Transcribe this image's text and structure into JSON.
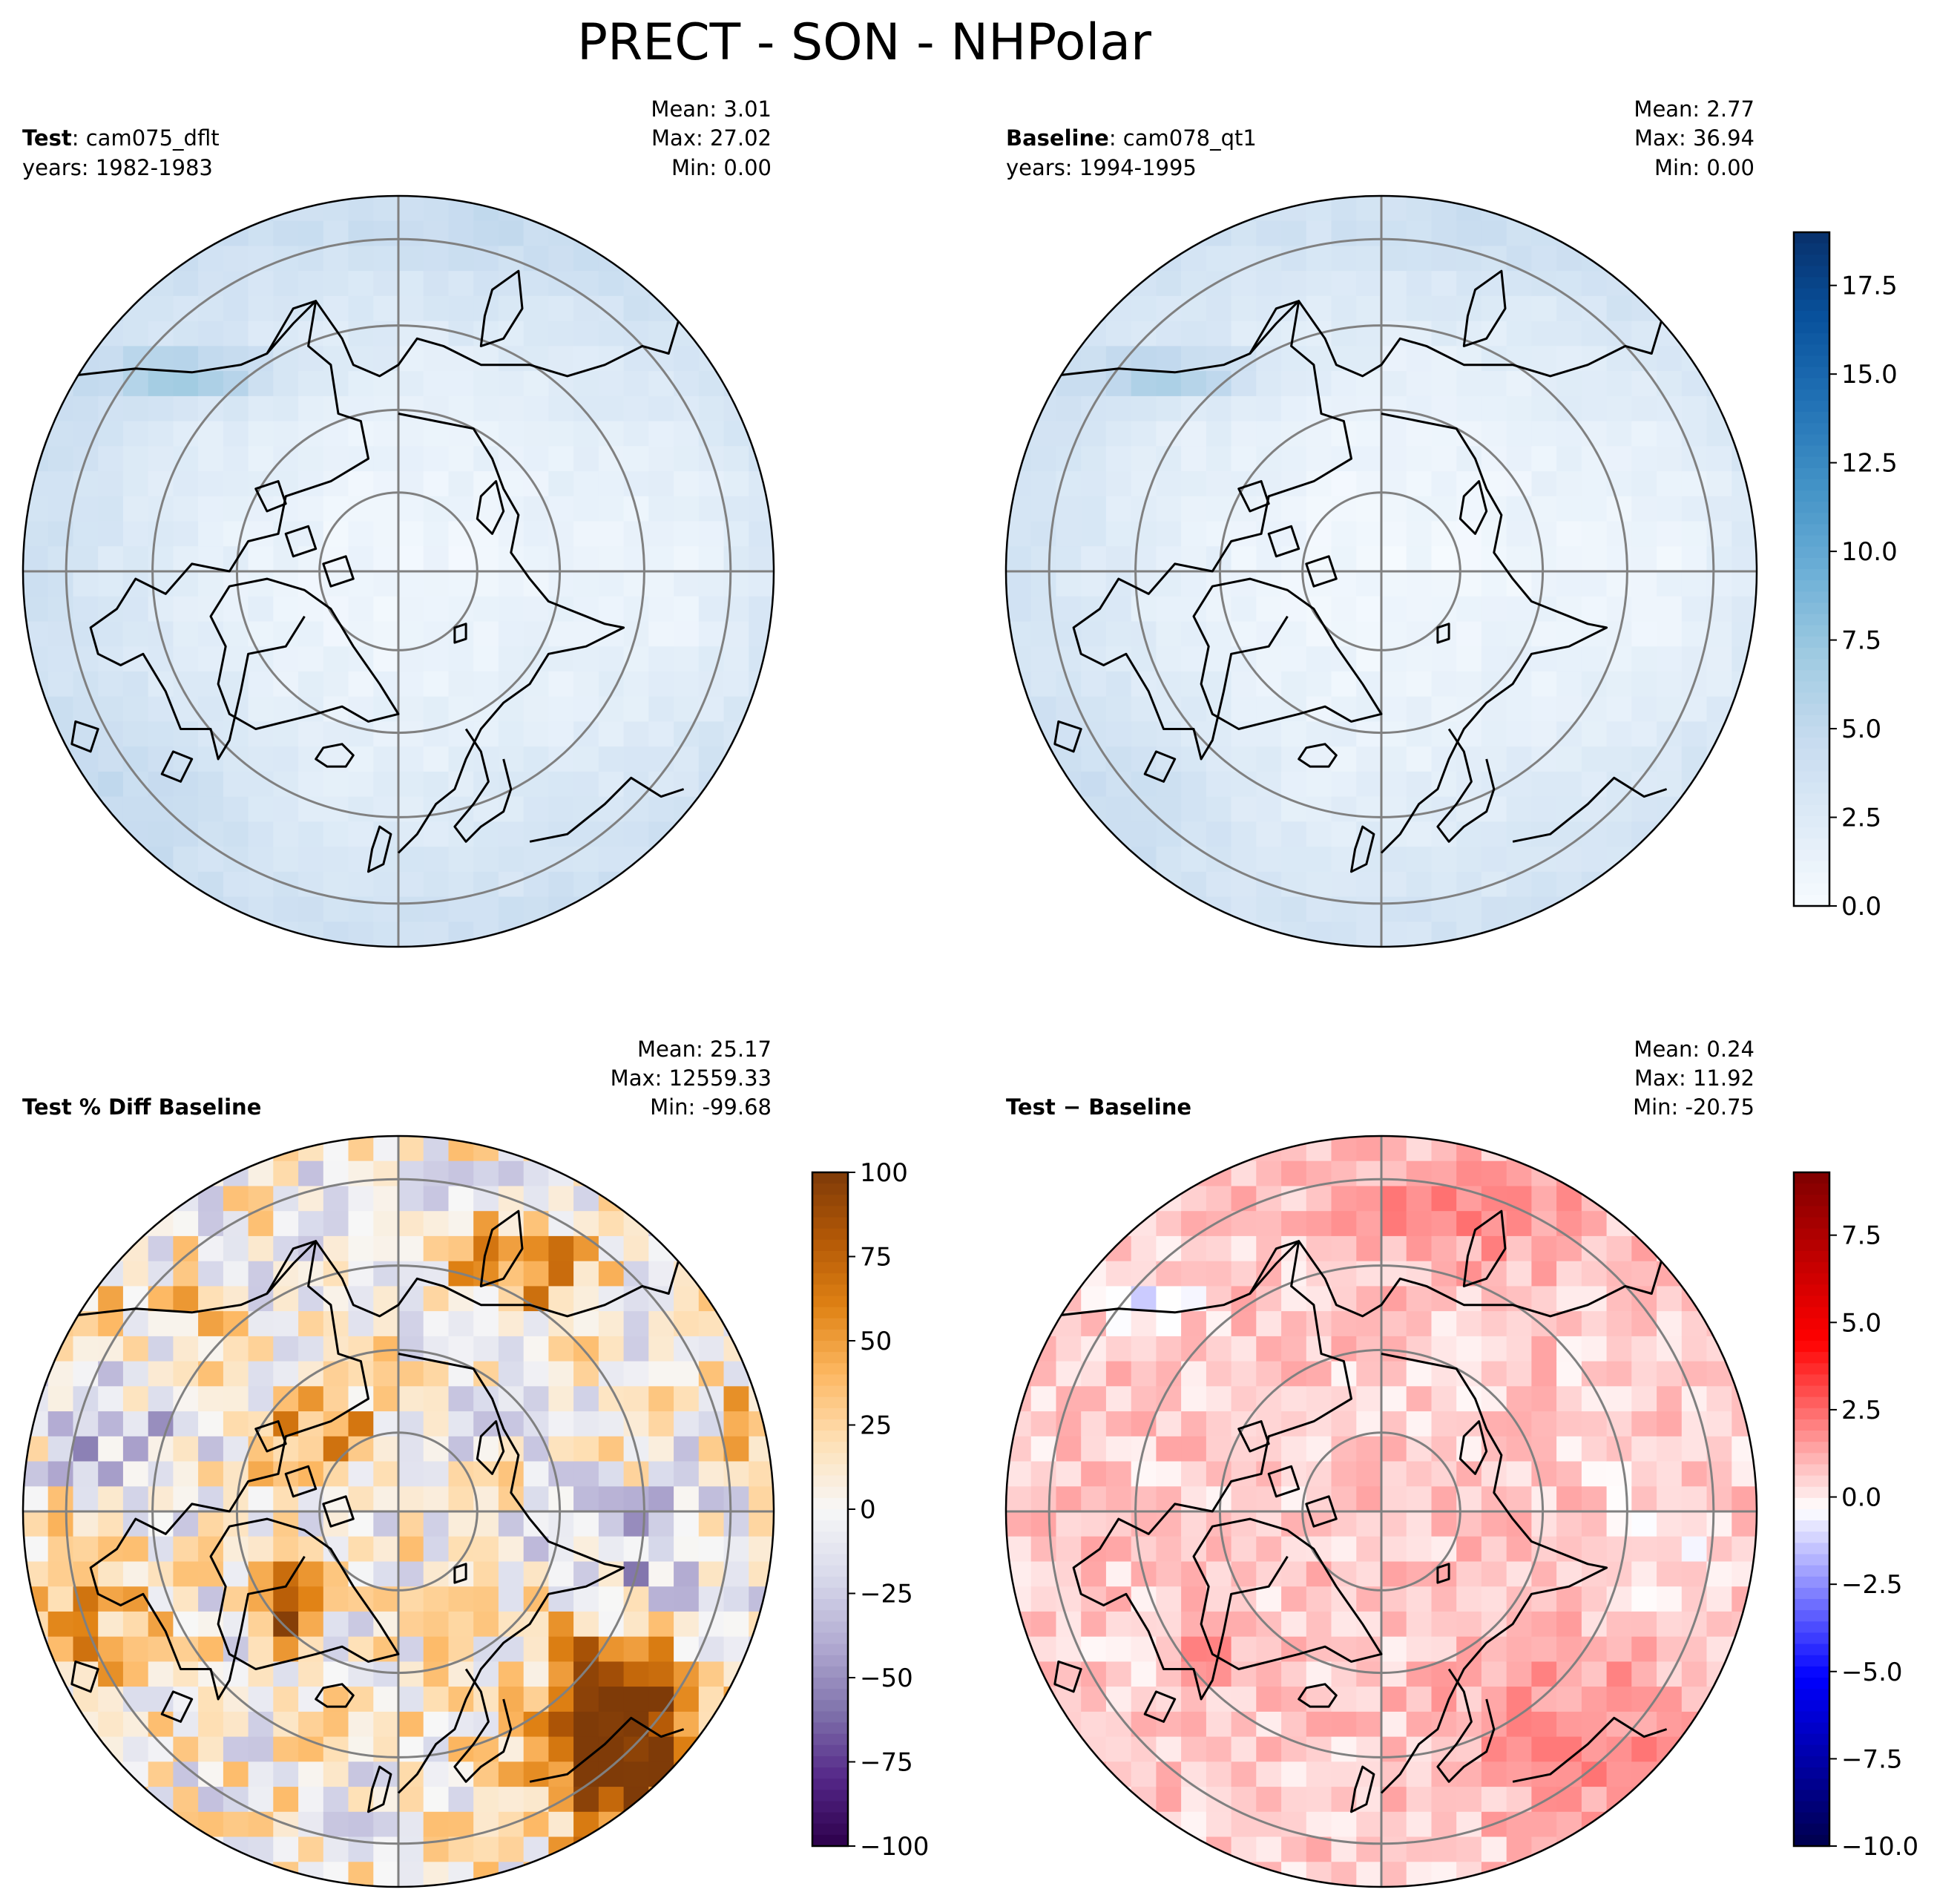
{
  "figure": {
    "title": "PRECT - SON - NHPolar"
  },
  "chart_data": [
    {
      "type": "heatmap",
      "name": "test",
      "title_bold": "Test",
      "title_rest": ": cam075_dflt",
      "subtitle": "years: 1982-1983",
      "stats": [
        "Mean:  3.01",
        "Max: 27.02",
        "Min:  0.00"
      ],
      "projection": "north-polar-stereographic",
      "colormap": "Blues",
      "vmin": 0,
      "vmax": 19
    },
    {
      "type": "heatmap",
      "name": "baseline",
      "title_bold": "Baseline",
      "title_rest": ": cam078_qt1",
      "subtitle": "years: 1994-1995",
      "stats": [
        "Mean:  2.77",
        "Max: 36.94",
        "Min:  0.00"
      ],
      "projection": "north-polar-stereographic",
      "colormap": "Blues",
      "vmin": 0,
      "vmax": 19,
      "colorbar": {
        "ticks": [
          "0.0",
          "2.5",
          "5.0",
          "7.5",
          "10.0",
          "12.5",
          "15.0",
          "17.5"
        ],
        "tick_values": [
          0,
          2.5,
          5,
          7.5,
          10,
          12.5,
          15,
          17.5
        ]
      }
    },
    {
      "type": "heatmap",
      "name": "pctdiff",
      "title_bold": "Test % Diff Baseline",
      "title_rest": "",
      "subtitle": "",
      "stats": [
        "Mean: 25.17",
        "Max: 12559.33",
        "Min: -99.68"
      ],
      "projection": "north-polar-stereographic",
      "colormap": "PuOr_r",
      "vmin": -100,
      "vmax": 100,
      "colorbar": {
        "ticks": [
          "−100",
          "−75",
          "−50",
          "−25",
          "0",
          "25",
          "50",
          "75",
          "100"
        ],
        "tick_values": [
          -100,
          -75,
          -50,
          -25,
          0,
          25,
          50,
          75,
          100
        ]
      }
    },
    {
      "type": "heatmap",
      "name": "diff",
      "title_bold": "Test − Baseline",
      "title_rest": "",
      "subtitle": "",
      "stats": [
        "Mean:  0.24",
        "Max: 11.92",
        "Min: -20.75"
      ],
      "projection": "north-polar-stereographic",
      "colormap": "seismic",
      "vmin": -10,
      "vmax": 9.3,
      "colorbar": {
        "ticks": [
          "−10.0",
          "−7.5",
          "−5.0",
          "−2.5",
          "0.0",
          "2.5",
          "5.0",
          "7.5"
        ],
        "tick_values": [
          -10,
          -7.5,
          -5,
          -2.5,
          0,
          2.5,
          5,
          7.5
        ]
      }
    }
  ],
  "colors": {
    "blues": [
      "#f7fbff",
      "#deebf7",
      "#c6dbef",
      "#9ecae1",
      "#6baed6",
      "#4292c6",
      "#2171b5",
      "#08519c",
      "#08306b"
    ],
    "puor": [
      "#2d004b",
      "#542788",
      "#8073ac",
      "#b2abd2",
      "#d8daeb",
      "#f7f7f7",
      "#fee0b6",
      "#fdb863",
      "#e08214",
      "#b35806",
      "#7f3b08"
    ],
    "seismic": [
      "#00004c",
      "#0000ff",
      "#ffffff",
      "#ff0000",
      "#7f0000"
    ],
    "grid": "#808080",
    "coast": "#000000"
  }
}
